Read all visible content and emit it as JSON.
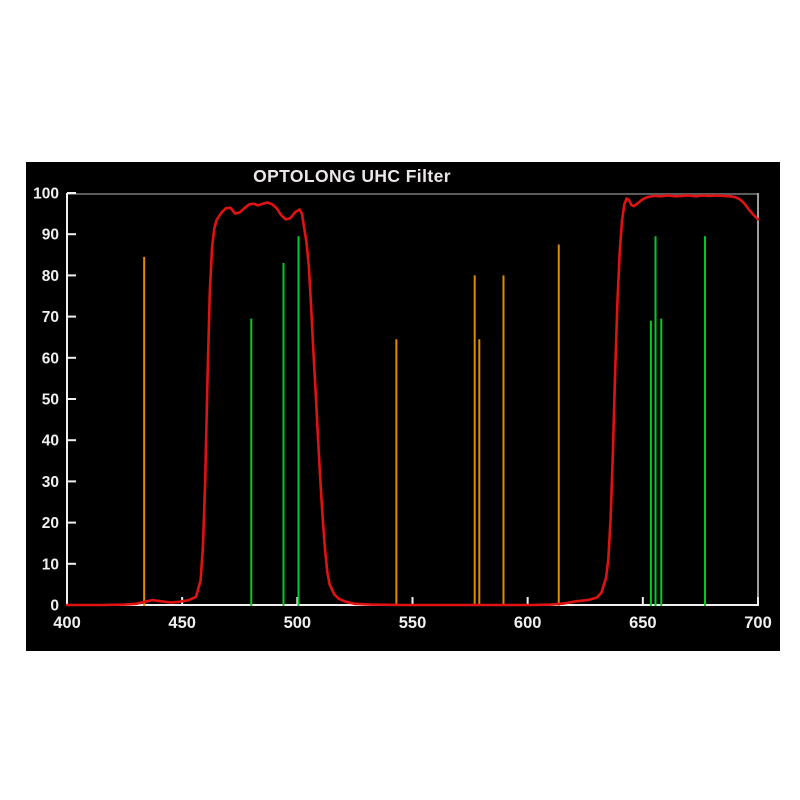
{
  "window": {
    "background_color": "#ffffff"
  },
  "chart": {
    "panel_bg": "#000000",
    "title_color": "#ebe7e7",
    "axis_color": "#f0f0f0",
    "top_border_color": "#5c5c5c",
    "right_border_color": "#9f9f9f",
    "tick_label_color": "#f0f0f0",
    "red_curve_color": "#e01212",
    "orange_line_color": "#dd8c00",
    "green_line_color": "#00cc22"
  },
  "chart_data": {
    "type": "line",
    "title": "OPTOLONG UHC Filter",
    "xlabel": "",
    "ylabel": "",
    "xlim": [
      400,
      700
    ],
    "ylim": [
      0,
      100
    ],
    "x_ticks": [
      400,
      450,
      500,
      550,
      600,
      650,
      700
    ],
    "y_ticks": [
      0,
      10,
      20,
      30,
      40,
      50,
      60,
      70,
      80,
      90,
      100
    ],
    "grid": false,
    "legend": "none",
    "series": [
      {
        "name": "red-transmission-curve-percent",
        "type": "line",
        "color": "#e01212",
        "points": [
          [
            400,
            0
          ],
          [
            415,
            0
          ],
          [
            425,
            0.1
          ],
          [
            430,
            0.3
          ],
          [
            434,
            0.8
          ],
          [
            437,
            1.2
          ],
          [
            441,
            0.9
          ],
          [
            445,
            0.6
          ],
          [
            449,
            0.8
          ],
          [
            453,
            1.2
          ],
          [
            456,
            2
          ],
          [
            458,
            6
          ],
          [
            459,
            14
          ],
          [
            460,
            30
          ],
          [
            461,
            55
          ],
          [
            462,
            76
          ],
          [
            463,
            87
          ],
          [
            464,
            91.5
          ],
          [
            465,
            93.5
          ],
          [
            467,
            95.2
          ],
          [
            469,
            96.3
          ],
          [
            471,
            96.4
          ],
          [
            473,
            95
          ],
          [
            475,
            95.3
          ],
          [
            477,
            96.3
          ],
          [
            479,
            97.2
          ],
          [
            481,
            97.4
          ],
          [
            483,
            97
          ],
          [
            485,
            97.4
          ],
          [
            487,
            97.7
          ],
          [
            489,
            97.3
          ],
          [
            491,
            96.3
          ],
          [
            493,
            94.6
          ],
          [
            495,
            93.6
          ],
          [
            497,
            93.9
          ],
          [
            499,
            95.3
          ],
          [
            501,
            96
          ],
          [
            502,
            95
          ],
          [
            503,
            91.5
          ],
          [
            504,
            88
          ],
          [
            505,
            82
          ],
          [
            506,
            72
          ],
          [
            507,
            61
          ],
          [
            508,
            51
          ],
          [
            509,
            40
          ],
          [
            510,
            30
          ],
          [
            511,
            21
          ],
          [
            512,
            13.5
          ],
          [
            513,
            8
          ],
          [
            514,
            5
          ],
          [
            516,
            2.6
          ],
          [
            518,
            1.5
          ],
          [
            521,
            0.8
          ],
          [
            525,
            0.3
          ],
          [
            532,
            0.1
          ],
          [
            545,
            0
          ],
          [
            565,
            0
          ],
          [
            585,
            0
          ],
          [
            602,
            0
          ],
          [
            610,
            0.1
          ],
          [
            616,
            0.4
          ],
          [
            621,
            0.9
          ],
          [
            626,
            1.2
          ],
          [
            630,
            1.8
          ],
          [
            632,
            3
          ],
          [
            634,
            6.5
          ],
          [
            635,
            11
          ],
          [
            636,
            21
          ],
          [
            637,
            37
          ],
          [
            638,
            57
          ],
          [
            639,
            74
          ],
          [
            640,
            86
          ],
          [
            641,
            93.5
          ],
          [
            642,
            97.3
          ],
          [
            643,
            98.7
          ],
          [
            644,
            98.3
          ],
          [
            645,
            97.1
          ],
          [
            646,
            96.8
          ],
          [
            648,
            97.6
          ],
          [
            650,
            98.5
          ],
          [
            652,
            99
          ],
          [
            655,
            99.3
          ],
          [
            658,
            99.2
          ],
          [
            661,
            99.4
          ],
          [
            664,
            99.2
          ],
          [
            667,
            99.3
          ],
          [
            670,
            99.4
          ],
          [
            673,
            99.2
          ],
          [
            676,
            99.4
          ],
          [
            679,
            99.3
          ],
          [
            682,
            99.4
          ],
          [
            685,
            99.3
          ],
          [
            688,
            99.2
          ],
          [
            690,
            99
          ],
          [
            692,
            98.5
          ],
          [
            694,
            97.5
          ],
          [
            696,
            96
          ],
          [
            698,
            94.7
          ],
          [
            700,
            93.6
          ]
        ]
      }
    ],
    "emission_lines": [
      {
        "x": 433.5,
        "value": 84.5,
        "color": "#dd8c00"
      },
      {
        "x": 480,
        "value": 69.5,
        "color": "#00cc22"
      },
      {
        "x": 494,
        "value": 83,
        "color": "#00cc22"
      },
      {
        "x": 500.5,
        "value": 89.5,
        "color": "#00cc22"
      },
      {
        "x": 543,
        "value": 64.5,
        "color": "#dd8c00"
      },
      {
        "x": 577,
        "value": 80,
        "color": "#dd8c00"
      },
      {
        "x": 579,
        "value": 64.5,
        "color": "#dd8c00"
      },
      {
        "x": 589.5,
        "value": 80,
        "color": "#dd8c00"
      },
      {
        "x": 613.5,
        "value": 87.5,
        "color": "#dd8c00"
      },
      {
        "x": 653.5,
        "value": 69,
        "color": "#00cc22"
      },
      {
        "x": 655.5,
        "value": 89.5,
        "color": "#00cc22"
      },
      {
        "x": 658,
        "value": 69.5,
        "color": "#00cc22"
      },
      {
        "x": 677,
        "value": 89.5,
        "color": "#00cc22"
      }
    ]
  }
}
